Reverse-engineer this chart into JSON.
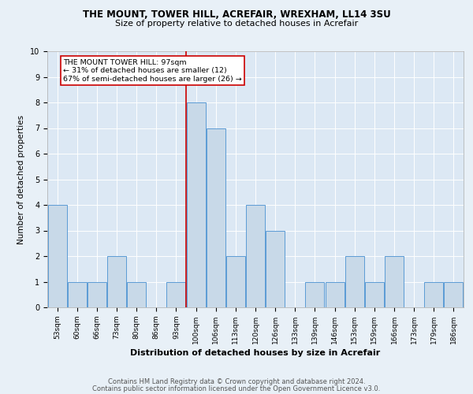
{
  "title1": "THE MOUNT, TOWER HILL, ACREFAIR, WREXHAM, LL14 3SU",
  "title2": "Size of property relative to detached houses in Acrefair",
  "xlabel": "Distribution of detached houses by size in Acrefair",
  "ylabel": "Number of detached properties",
  "categories": [
    "53sqm",
    "60sqm",
    "66sqm",
    "73sqm",
    "80sqm",
    "86sqm",
    "93sqm",
    "100sqm",
    "106sqm",
    "113sqm",
    "120sqm",
    "126sqm",
    "133sqm",
    "139sqm",
    "146sqm",
    "153sqm",
    "159sqm",
    "166sqm",
    "173sqm",
    "179sqm",
    "186sqm"
  ],
  "values": [
    4,
    1,
    1,
    2,
    1,
    0,
    1,
    8,
    7,
    2,
    4,
    3,
    0,
    1,
    1,
    2,
    1,
    2,
    0,
    1,
    1
  ],
  "bar_color": "#c8d9e8",
  "bar_edge_color": "#5b9bd5",
  "vline_color": "#cc0000",
  "annotation_text": "THE MOUNT TOWER HILL: 97sqm\n← 31% of detached houses are smaller (12)\n67% of semi-detached houses are larger (26) →",
  "annotation_box_color": "#ffffff",
  "annotation_box_edge": "#cc0000",
  "ylim": [
    0,
    10
  ],
  "yticks": [
    0,
    1,
    2,
    3,
    4,
    5,
    6,
    7,
    8,
    9,
    10
  ],
  "footer1": "Contains HM Land Registry data © Crown copyright and database right 2024.",
  "footer2": "Contains public sector information licensed under the Open Government Licence v3.0.",
  "bg_color": "#e8f0f7",
  "plot_bg_color": "#dce8f4",
  "title1_fontsize": 8.5,
  "title2_fontsize": 8.0,
  "xlabel_fontsize": 8.0,
  "ylabel_fontsize": 7.5,
  "tick_fontsize": 6.5,
  "footer_fontsize": 6.0
}
